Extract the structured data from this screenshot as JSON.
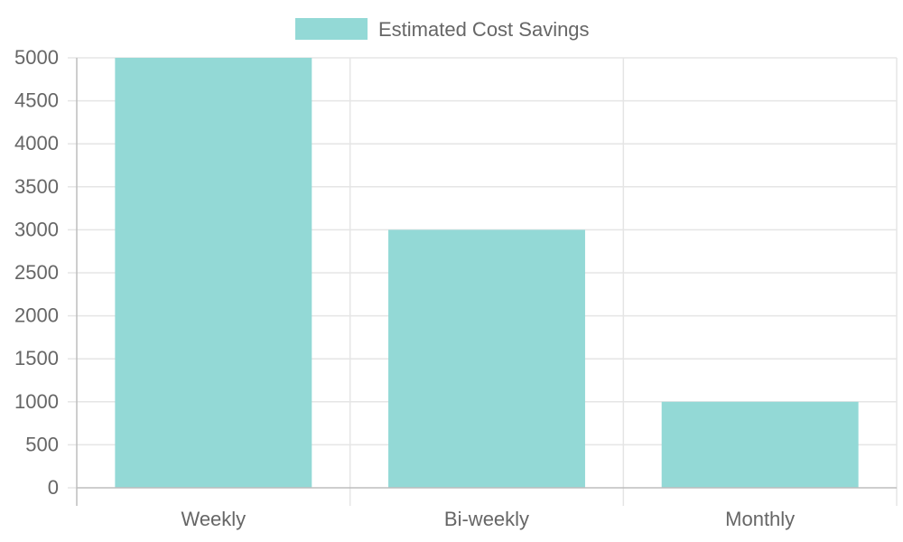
{
  "chart_data": {
    "type": "bar",
    "categories": [
      "Weekly",
      "Bi-weekly",
      "Monthly"
    ],
    "series": [
      {
        "name": "Estimated Cost Savings",
        "values": [
          5000,
          3000,
          1000
        ],
        "color": "#93d9d6"
      }
    ],
    "yticks": [
      0,
      500,
      1000,
      1500,
      2000,
      2500,
      3000,
      3500,
      4000,
      4500,
      5000
    ],
    "ylim": [
      0,
      5000
    ],
    "grid": true,
    "legend": "top-center",
    "colors": {
      "grid": "#e5e5e5",
      "axis": "#bdbdbd",
      "text": "#666666"
    }
  }
}
